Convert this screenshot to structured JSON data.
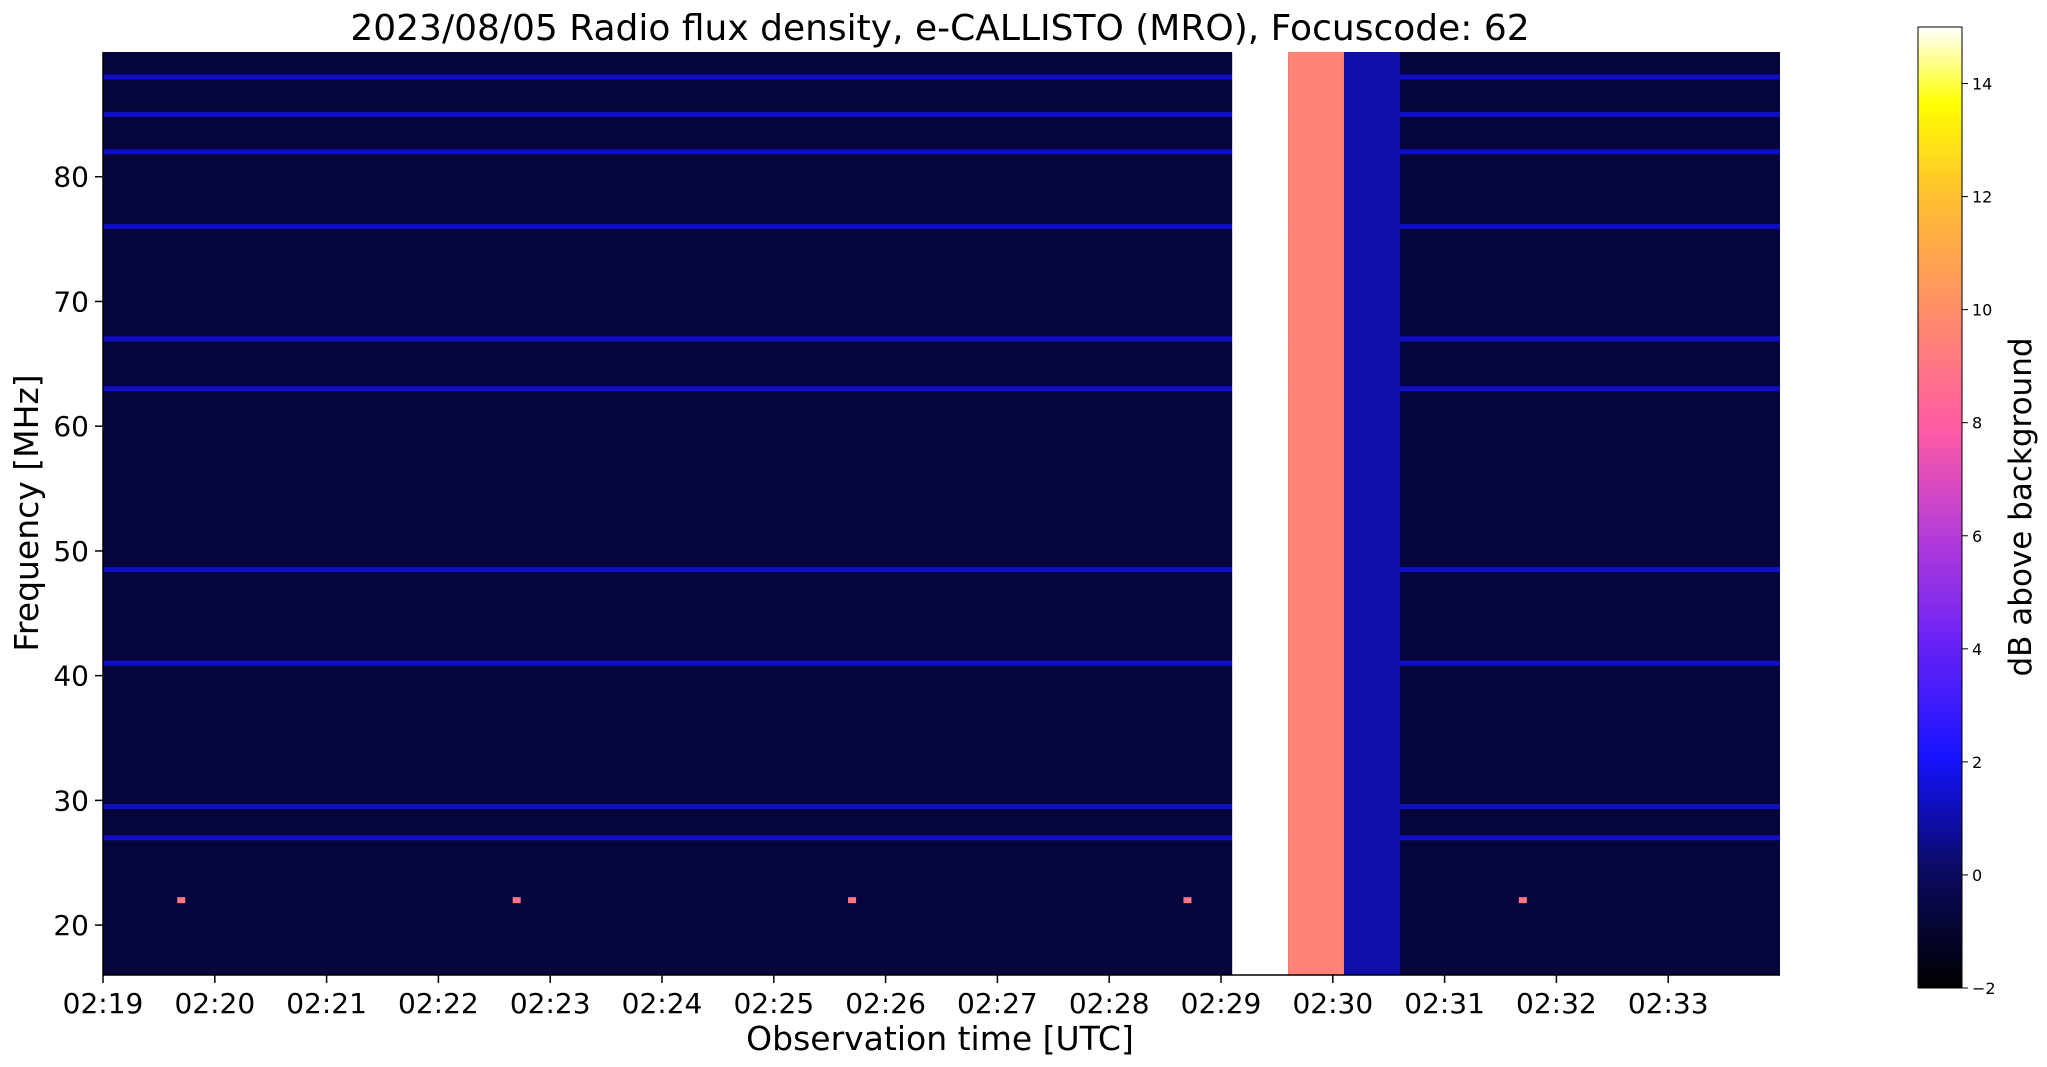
{
  "chart_data": {
    "type": "heatmap",
    "title": "2023/08/05  Radio flux density, e-CALLISTO (MRO), Focuscode: 62",
    "xlabel": "Observation time [UTC]",
    "ylabel": "Frequency [MHz]",
    "colorbar_label": "dB above background",
    "colormap": "gnuplot2",
    "xlim": [
      "02:19:00",
      "02:34:00"
    ],
    "x_ticks": [
      "02:19",
      "02:20",
      "02:21",
      "02:22",
      "02:23",
      "02:24",
      "02:25",
      "02:26",
      "02:27",
      "02:28",
      "02:29",
      "02:30",
      "02:31",
      "02:32",
      "02:33"
    ],
    "ylim": [
      16,
      90
    ],
    "y_ticks": [
      20,
      30,
      40,
      50,
      60,
      70,
      80
    ],
    "colorbar_range": [
      -2,
      15
    ],
    "colorbar_ticks": [
      -2,
      0,
      2,
      4,
      6,
      8,
      10,
      12,
      14
    ],
    "background_level_db": 0.5,
    "interference_bands_mhz": [
      88,
      85,
      82,
      76,
      67,
      63,
      48.5,
      41,
      29.5,
      27
    ],
    "overload_segments": [
      {
        "start": "02:29:06",
        "end": "02:29:36",
        "level_db": 15
      },
      {
        "start": "02:29:36",
        "end": "02:30:06",
        "level_db": 9.5
      },
      {
        "start": "02:30:06",
        "end": "02:30:36",
        "level_db": 1
      }
    ],
    "periodic_spikes": {
      "freq_mhz": 22,
      "times": [
        "02:19:42",
        "02:22:42",
        "02:25:42",
        "02:28:42",
        "02:31:42"
      ],
      "level_db": 9
    }
  }
}
